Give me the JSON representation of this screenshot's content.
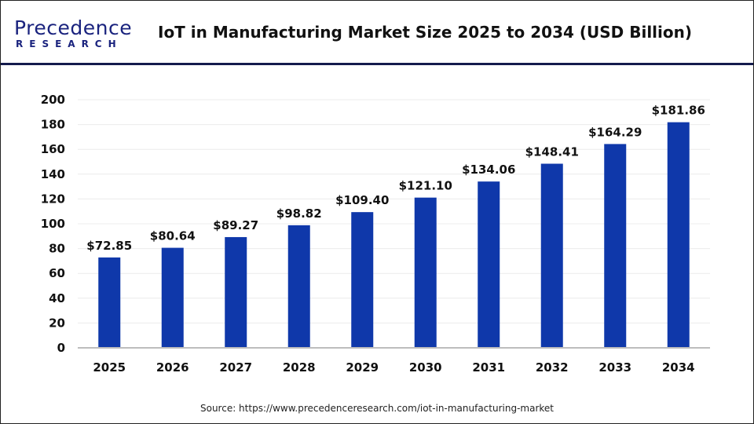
{
  "logo": {
    "text_line1": "Precedence",
    "text_line2": "RESEARCH"
  },
  "header": {
    "title": "IoT in Manufacturing Market Size 2025 to 2034 (USD Billion)"
  },
  "footer": {
    "source": "Source: https://www.precedenceresearch.com/iot-in-manufacturing-market"
  },
  "chart_data": {
    "type": "bar",
    "title": "IoT in Manufacturing Market Size 2025 to 2034 (USD Billion)",
    "categories": [
      "2025",
      "2026",
      "2027",
      "2028",
      "2029",
      "2030",
      "2031",
      "2032",
      "2033",
      "2034"
    ],
    "values": [
      72.85,
      80.64,
      89.27,
      98.82,
      109.4,
      121.1,
      134.06,
      148.41,
      164.29,
      181.86
    ],
    "data_labels": [
      "$72.85",
      "$80.64",
      "$89.27",
      "$98.82",
      "$109.40",
      "$121.10",
      "$134.06",
      "$148.41",
      "$164.29",
      "$181.86"
    ],
    "ylim": [
      0,
      200
    ],
    "yticks": [
      0,
      20,
      40,
      60,
      80,
      100,
      120,
      140,
      160,
      180,
      200
    ],
    "grid": true,
    "bar_color": "#0f38aa",
    "xlabel": "",
    "ylabel": ""
  }
}
